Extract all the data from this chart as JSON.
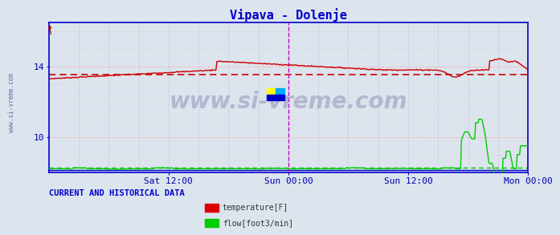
{
  "title": "Vipava - Dolenje",
  "title_color": "#0000cc",
  "bg_color": "#dce4ed",
  "plot_bg_color": "#dce4ed",
  "watermark": "www.si-vreme.com",
  "watermark_color": "#9999bb",
  "footer_text": "CURRENT AND HISTORICAL DATA",
  "footer_color": "#0000cc",
  "legend": [
    {
      "label": "temperature[F]",
      "color": "#dd0000"
    },
    {
      "label": "flow[foot3/min]",
      "color": "#00cc00"
    }
  ],
  "x_tick_labels": [
    "Sat 12:00",
    "Sun 00:00",
    "Sun 12:00",
    "Mon 00:00"
  ],
  "x_tick_positions": [
    0.25,
    0.5,
    0.75,
    1.0
  ],
  "ylim": [
    8.0,
    16.5
  ],
  "y_ticks": [
    10,
    14
  ],
  "n_points": 576,
  "grid_color_h": "#ffaaaa",
  "grid_color_v": "#aaaacc",
  "vline_color": "#cc00cc",
  "hline_red_dashed_y": 13.55,
  "hline_green_dashed_y": 8.28,
  "hline_blue_y": 8.15,
  "axis_color": "#0000ff",
  "temp_color": "#cc0000",
  "flow_color": "#00cc00"
}
